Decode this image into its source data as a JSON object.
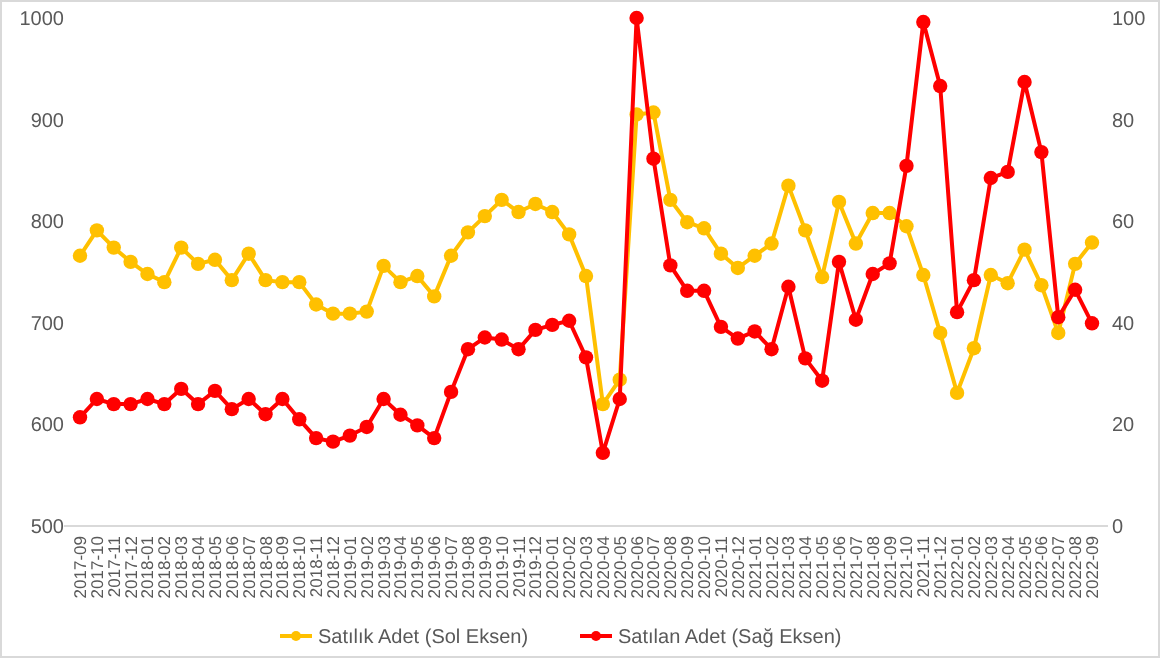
{
  "chart_data": {
    "type": "line",
    "categories": [
      "2017-09",
      "2017-10",
      "2017-11",
      "2017-12",
      "2018-01",
      "2018-02",
      "2018-03",
      "2018-04",
      "2018-05",
      "2018-06",
      "2018-07",
      "2018-08",
      "2018-09",
      "2018-10",
      "2018-11",
      "2018-12",
      "2019-01",
      "2019-02",
      "2019-03",
      "2019-04",
      "2019-05",
      "2019-06",
      "2019-07",
      "2019-08",
      "2019-09",
      "2019-10",
      "2019-11",
      "2019-12",
      "2020-01",
      "2020-02",
      "2020-03",
      "2020-04",
      "2020-05",
      "2020-06",
      "2020-07",
      "2020-08",
      "2020-09",
      "2020-10",
      "2020-11",
      "2020-12",
      "2021-01",
      "2021-02",
      "2021-03",
      "2021-04",
      "2021-05",
      "2021-06",
      "2021-07",
      "2021-08",
      "2021-09",
      "2021-10",
      "2021-11",
      "2021-12",
      "2022-01",
      "2022-02",
      "2022-03",
      "2022-04",
      "2022-05",
      "2022-06",
      "2022-07",
      "2022-08",
      "2022-09"
    ],
    "series": [
      {
        "name": "Satılık Adet (Sol Eksen)",
        "color": "#ffc000",
        "values": [
          766,
          791,
          774,
          760,
          748,
          740,
          774,
          758,
          762,
          742,
          768,
          742,
          740,
          740,
          718,
          709,
          709,
          711,
          756,
          740,
          746,
          726,
          766,
          789,
          805,
          821,
          809,
          817,
          809,
          787,
          746,
          620,
          644,
          905,
          907,
          821,
          799,
          793,
          768,
          754,
          766,
          778,
          835,
          791,
          745,
          819,
          778,
          808,
          808,
          795,
          747,
          690,
          631,
          675,
          747,
          739,
          772,
          737,
          690,
          758,
          779
        ]
      },
      {
        "name": "Satılan Adet (Sağ Eksen)",
        "color": "#ff0000",
        "axis": "y2",
        "values": [
          21.4,
          25,
          24,
          24,
          25,
          24,
          27,
          24,
          26.6,
          23,
          25,
          22,
          25,
          21,
          17.3,
          16.6,
          17.8,
          19.5,
          25,
          21.9,
          19.8,
          17.3,
          26.4,
          34.8,
          37.1,
          36.7,
          34.8,
          38.6,
          39.6,
          40.4,
          33.2,
          14.4,
          25,
          100,
          72.3,
          51.3,
          46.3,
          46.3,
          39.2,
          36.9,
          38.3,
          34.8,
          47.1,
          33,
          28.6,
          52,
          40.6,
          49.6,
          51.7,
          70.9,
          99.2,
          86.6,
          42.1,
          48.4,
          68.5,
          69.7,
          87.4,
          73.6,
          41.1,
          46.5,
          39.9
        ]
      }
    ],
    "ylim": [
      500,
      1000
    ],
    "yticks": [
      500,
      600,
      700,
      800,
      900,
      1000
    ],
    "y2lim": [
      0,
      100
    ],
    "y2ticks": [
      0,
      20,
      40,
      60,
      80,
      100
    ],
    "marker": "circle",
    "legend": "bottom",
    "grid": false
  }
}
